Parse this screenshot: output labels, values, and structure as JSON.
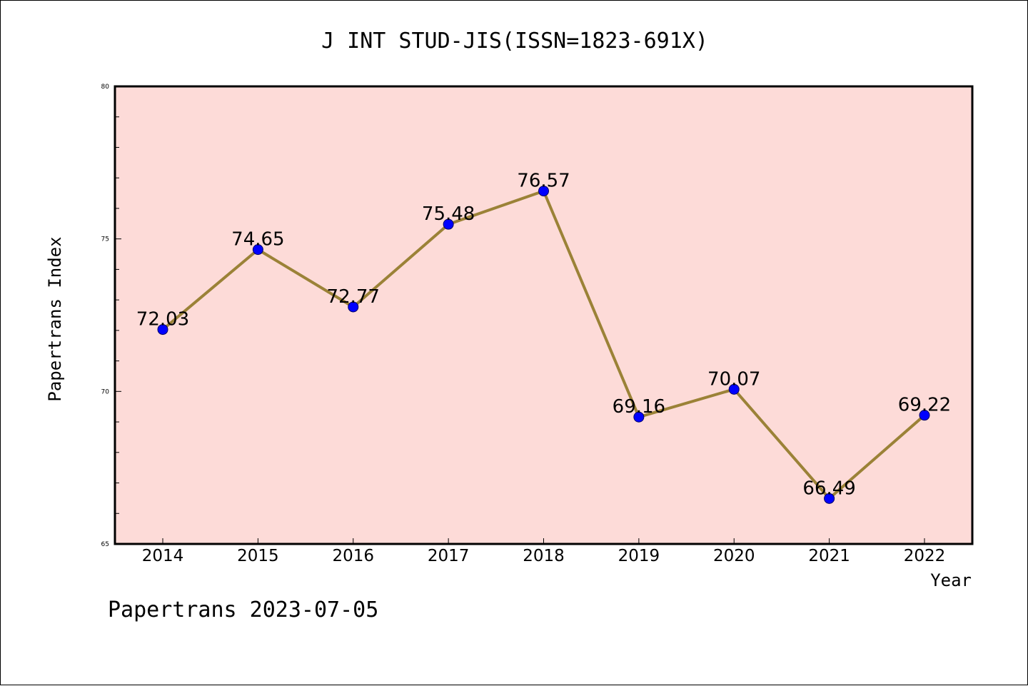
{
  "chart_data": {
    "type": "line",
    "title": "J INT STUD-JIS(ISSN=1823-691X)",
    "xlabel": "Year",
    "ylabel": "Papertrans Index",
    "categories": [
      "2014",
      "2015",
      "2016",
      "2017",
      "2018",
      "2019",
      "2020",
      "2021",
      "2022"
    ],
    "series": [
      {
        "values": [
          72.03,
          74.65,
          72.77,
          75.48,
          76.57,
          69.16,
          70.07,
          66.49,
          69.22
        ]
      }
    ],
    "data_labels": [
      "72.03",
      "74.65",
      "72.77",
      "75.48",
      "76.57",
      "69.16",
      "70.07",
      "66.49",
      "69.22"
    ],
    "ylim": [
      65,
      80
    ],
    "yticks": [
      "65",
      "70",
      "75",
      "80"
    ],
    "grid": false,
    "legend": "none",
    "colors": {
      "plot_background": "#fddbd8",
      "line": "#9b8237",
      "marker": "#0000ff",
      "axis": "#000000"
    }
  },
  "footer": "Papertrans 2023-07-05"
}
